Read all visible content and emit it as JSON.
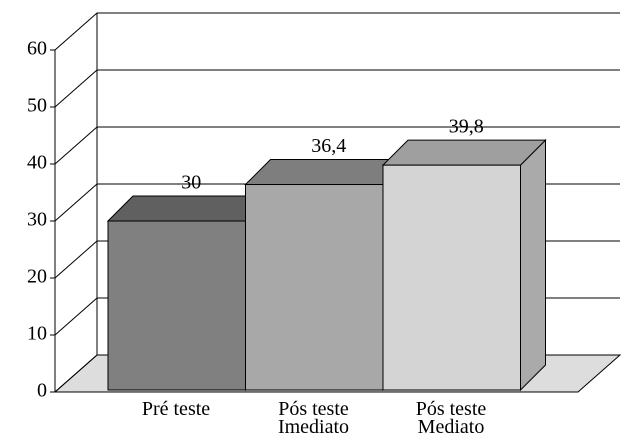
{
  "chart_data": {
    "type": "bar3d",
    "categories": [
      "Pré teste",
      "Pós teste Imediato",
      "Pós teste Mediato"
    ],
    "values": [
      30,
      36.4,
      39.8
    ],
    "value_labels": [
      "30",
      "36,4",
      "39,8"
    ],
    "colors": [
      "#808080",
      "#a8a8a8",
      "#d4d4d4"
    ],
    "ylim": [
      0,
      60
    ],
    "yticks": [
      0,
      10,
      20,
      30,
      40,
      50,
      60
    ],
    "grid": true
  }
}
